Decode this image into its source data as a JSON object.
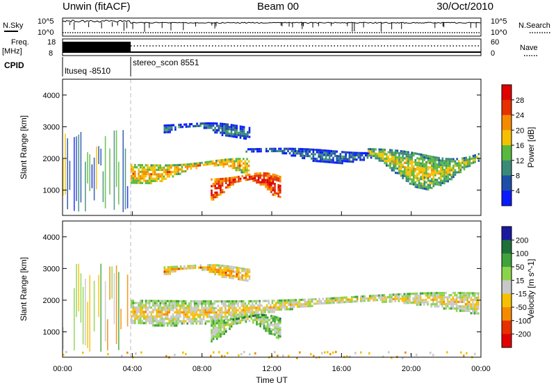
{
  "header": {
    "radar": "Unwin (fitACF)",
    "beam": "Beam 00",
    "date": "30/Oct/2010"
  },
  "status_panels": {
    "nsky_label": "N.Sky",
    "nsearch_label": "N.Search",
    "nsky_ticks": [
      "10^5",
      "10^0"
    ],
    "nsearch_ticks": [
      "10^5",
      "10^0"
    ],
    "freq_label": "Freq.",
    "freq_unit": "[MHz]",
    "freq_ticks": [
      "18",
      "8"
    ],
    "nave_label": "Nave",
    "nave_ticks": [
      "60",
      "0"
    ],
    "cpid_label": "CPID",
    "programs": [
      {
        "name": "ltuseq -8510",
        "start_hour": 0,
        "end_hour": 3.9
      },
      {
        "name": "stereo_scon 8551",
        "start_hour": 3.9,
        "end_hour": 24
      }
    ]
  },
  "chart_data": [
    {
      "type": "heatmap",
      "name": "power",
      "ylabel": "Slant Range [km]",
      "xlabel": "",
      "x_range_hours": [
        0,
        24
      ],
      "ylim": [
        200,
        4500
      ],
      "yticks": [
        1000,
        2000,
        3000,
        4000
      ],
      "colorbar": {
        "label": "Power [dB]",
        "ticks": [
          "4",
          "8",
          "12",
          "16",
          "20",
          "24",
          "28"
        ],
        "colors": [
          "#0a1aff",
          "#1e4fa8",
          "#3a8a78",
          "#59b93f",
          "#f5c000",
          "#f58a00",
          "#e63000",
          "#e00000"
        ]
      },
      "features": [
        {
          "start_hour": 0.0,
          "end_hour": 3.9,
          "range_min": 300,
          "range_max": 2900,
          "level": 2,
          "kind": "vertical"
        },
        {
          "start_hour": 3.9,
          "end_hour": 10.8,
          "range_min": 1200,
          "range_max": 2200,
          "level": 4,
          "kind": "band"
        },
        {
          "start_hour": 8.5,
          "end_hour": 12.6,
          "range_min": 650,
          "range_max": 1800,
          "level": 6,
          "kind": "band"
        },
        {
          "start_hour": 5.8,
          "end_hour": 10.8,
          "range_min": 2600,
          "range_max": 3300,
          "level": 1,
          "kind": "band"
        },
        {
          "start_hour": 10.5,
          "end_hour": 17.8,
          "range_min": 1850,
          "range_max": 2500,
          "level": 1,
          "kind": "band"
        },
        {
          "start_hour": 17.5,
          "end_hour": 24.0,
          "range_min": 1000,
          "range_max": 2800,
          "level": 3,
          "kind": "band"
        }
      ]
    },
    {
      "type": "heatmap",
      "name": "velocity",
      "ylabel": "Slant Range [km]",
      "xlabel": "Time UT",
      "x_range_hours": [
        0,
        24
      ],
      "xticks": [
        "00:00",
        "04:00",
        "08:00",
        "12:00",
        "16:00",
        "20:00",
        "00:00"
      ],
      "ylim": [
        200,
        4500
      ],
      "yticks": [
        1000,
        2000,
        3000,
        4000
      ],
      "colorbar": {
        "label": "Velocity [m s^-1]",
        "ticks": [
          "200",
          "100",
          "50",
          "15",
          "-15",
          "-50",
          "-100",
          "-200"
        ],
        "colors": [
          "#1a1aa0",
          "#1f6f3a",
          "#3fa23a",
          "#8ad44a",
          "#c8c8c8",
          "#f5c000",
          "#f58a00",
          "#e63000",
          "#e00000"
        ]
      },
      "features": [
        {
          "start_hour": 0.0,
          "end_hour": 3.9,
          "range_min": 300,
          "range_max": 3200,
          "level": 4,
          "kind": "vertical"
        },
        {
          "start_hour": 3.9,
          "end_hour": 24.0,
          "range_min": 1200,
          "range_max": 2500,
          "level": 4,
          "kind": "band"
        },
        {
          "start_hour": 8.5,
          "end_hour": 12.6,
          "range_min": 650,
          "range_max": 1800,
          "level": 3,
          "kind": "band"
        },
        {
          "start_hour": 5.8,
          "end_hour": 10.8,
          "range_min": 2600,
          "range_max": 3300,
          "level": 5,
          "kind": "band"
        },
        {
          "start_hour": 0.0,
          "end_hour": 24.0,
          "range_min": 200,
          "range_max": 400,
          "level": 5,
          "kind": "scatter"
        }
      ]
    }
  ]
}
